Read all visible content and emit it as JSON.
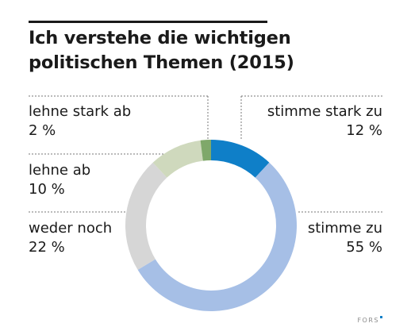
{
  "title": {
    "line1": "Ich verstehe die wichtigen",
    "line2": "politischen Themen (2015)"
  },
  "logo": {
    "text": "FORS"
  },
  "chart_data": {
    "type": "pie",
    "variant": "donut",
    "title": "Ich verstehe die wichtigen politischen Themen (2015)",
    "slices": [
      {
        "label": "stimme stark zu",
        "value": 12,
        "value_label": "12 %",
        "color": "#0f7fc8",
        "side": "right"
      },
      {
        "label": "stimme zu",
        "value": 55,
        "value_label": "55 %",
        "color": "#a6bfe6",
        "side": "right"
      },
      {
        "label": "weder noch",
        "value": 22,
        "value_label": "22 %",
        "color": "#d6d6d6",
        "side": "left"
      },
      {
        "label": "lehne ab",
        "value": 10,
        "value_label": "10 %",
        "color": "#cfd9bd",
        "side": "left"
      },
      {
        "label": "lehne stark ab",
        "value": 2,
        "value_label": "2 %",
        "color": "#7fa86a",
        "side": "left"
      }
    ],
    "start_angle_deg": 0,
    "direction": "clockwise",
    "legend": "none"
  }
}
